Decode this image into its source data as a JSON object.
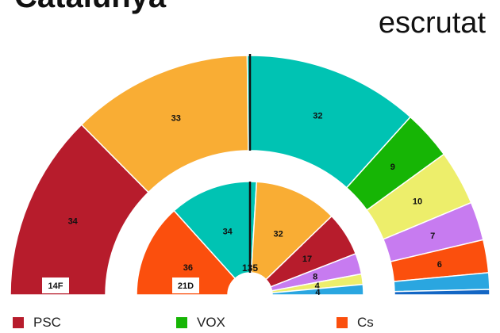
{
  "header": {
    "title": "Catalunya",
    "percent": "",
    "subtitle": "escrutat"
  },
  "chart_data": {
    "type": "parliament",
    "total_seats": 135,
    "total_label": "135",
    "series": [
      {
        "name": "14F",
        "ring": "outer",
        "segments": [
          {
            "party": "PSC",
            "seats": 34,
            "color": "#b71c2c"
          },
          {
            "party": "",
            "seats": 33,
            "color": "#f9ad34"
          },
          {
            "party": "",
            "seats": 32,
            "color": "#00c3b3"
          },
          {
            "party": "VOX",
            "seats": 9,
            "color": "#16b505"
          },
          {
            "party": "",
            "seats": 10,
            "color": "#edee6b"
          },
          {
            "party": "",
            "seats": 7,
            "color": "#c77bf0"
          },
          {
            "party": "Cs",
            "seats": 6,
            "color": "#fb4f0d"
          },
          {
            "party": "",
            "seats": 3,
            "color": "#2aa6e0"
          },
          {
            "party": "",
            "seats": 1,
            "color": "#1366c4"
          }
        ]
      },
      {
        "name": "21D",
        "ring": "inner",
        "segments": [
          {
            "party": "Cs",
            "seats": 36,
            "color": "#fb4f0d"
          },
          {
            "party": "",
            "seats": 34,
            "color": "#00c3b3"
          },
          {
            "party": "",
            "seats": 32,
            "color": "#f9ad34"
          },
          {
            "party": "PSC",
            "seats": 17,
            "color": "#b71c2c"
          },
          {
            "party": "",
            "seats": 8,
            "color": "#c77bf0"
          },
          {
            "party": "",
            "seats": 4,
            "color": "#edee6b"
          },
          {
            "party": "",
            "seats": 4,
            "color": "#2aa6e0"
          }
        ]
      }
    ],
    "majority_line": true
  },
  "legend": [
    {
      "label": "PSC",
      "color": "#b71c2c"
    },
    {
      "label": "VOX",
      "color": "#16b505"
    },
    {
      "label": "Cs",
      "color": "#fb4f0d"
    }
  ]
}
